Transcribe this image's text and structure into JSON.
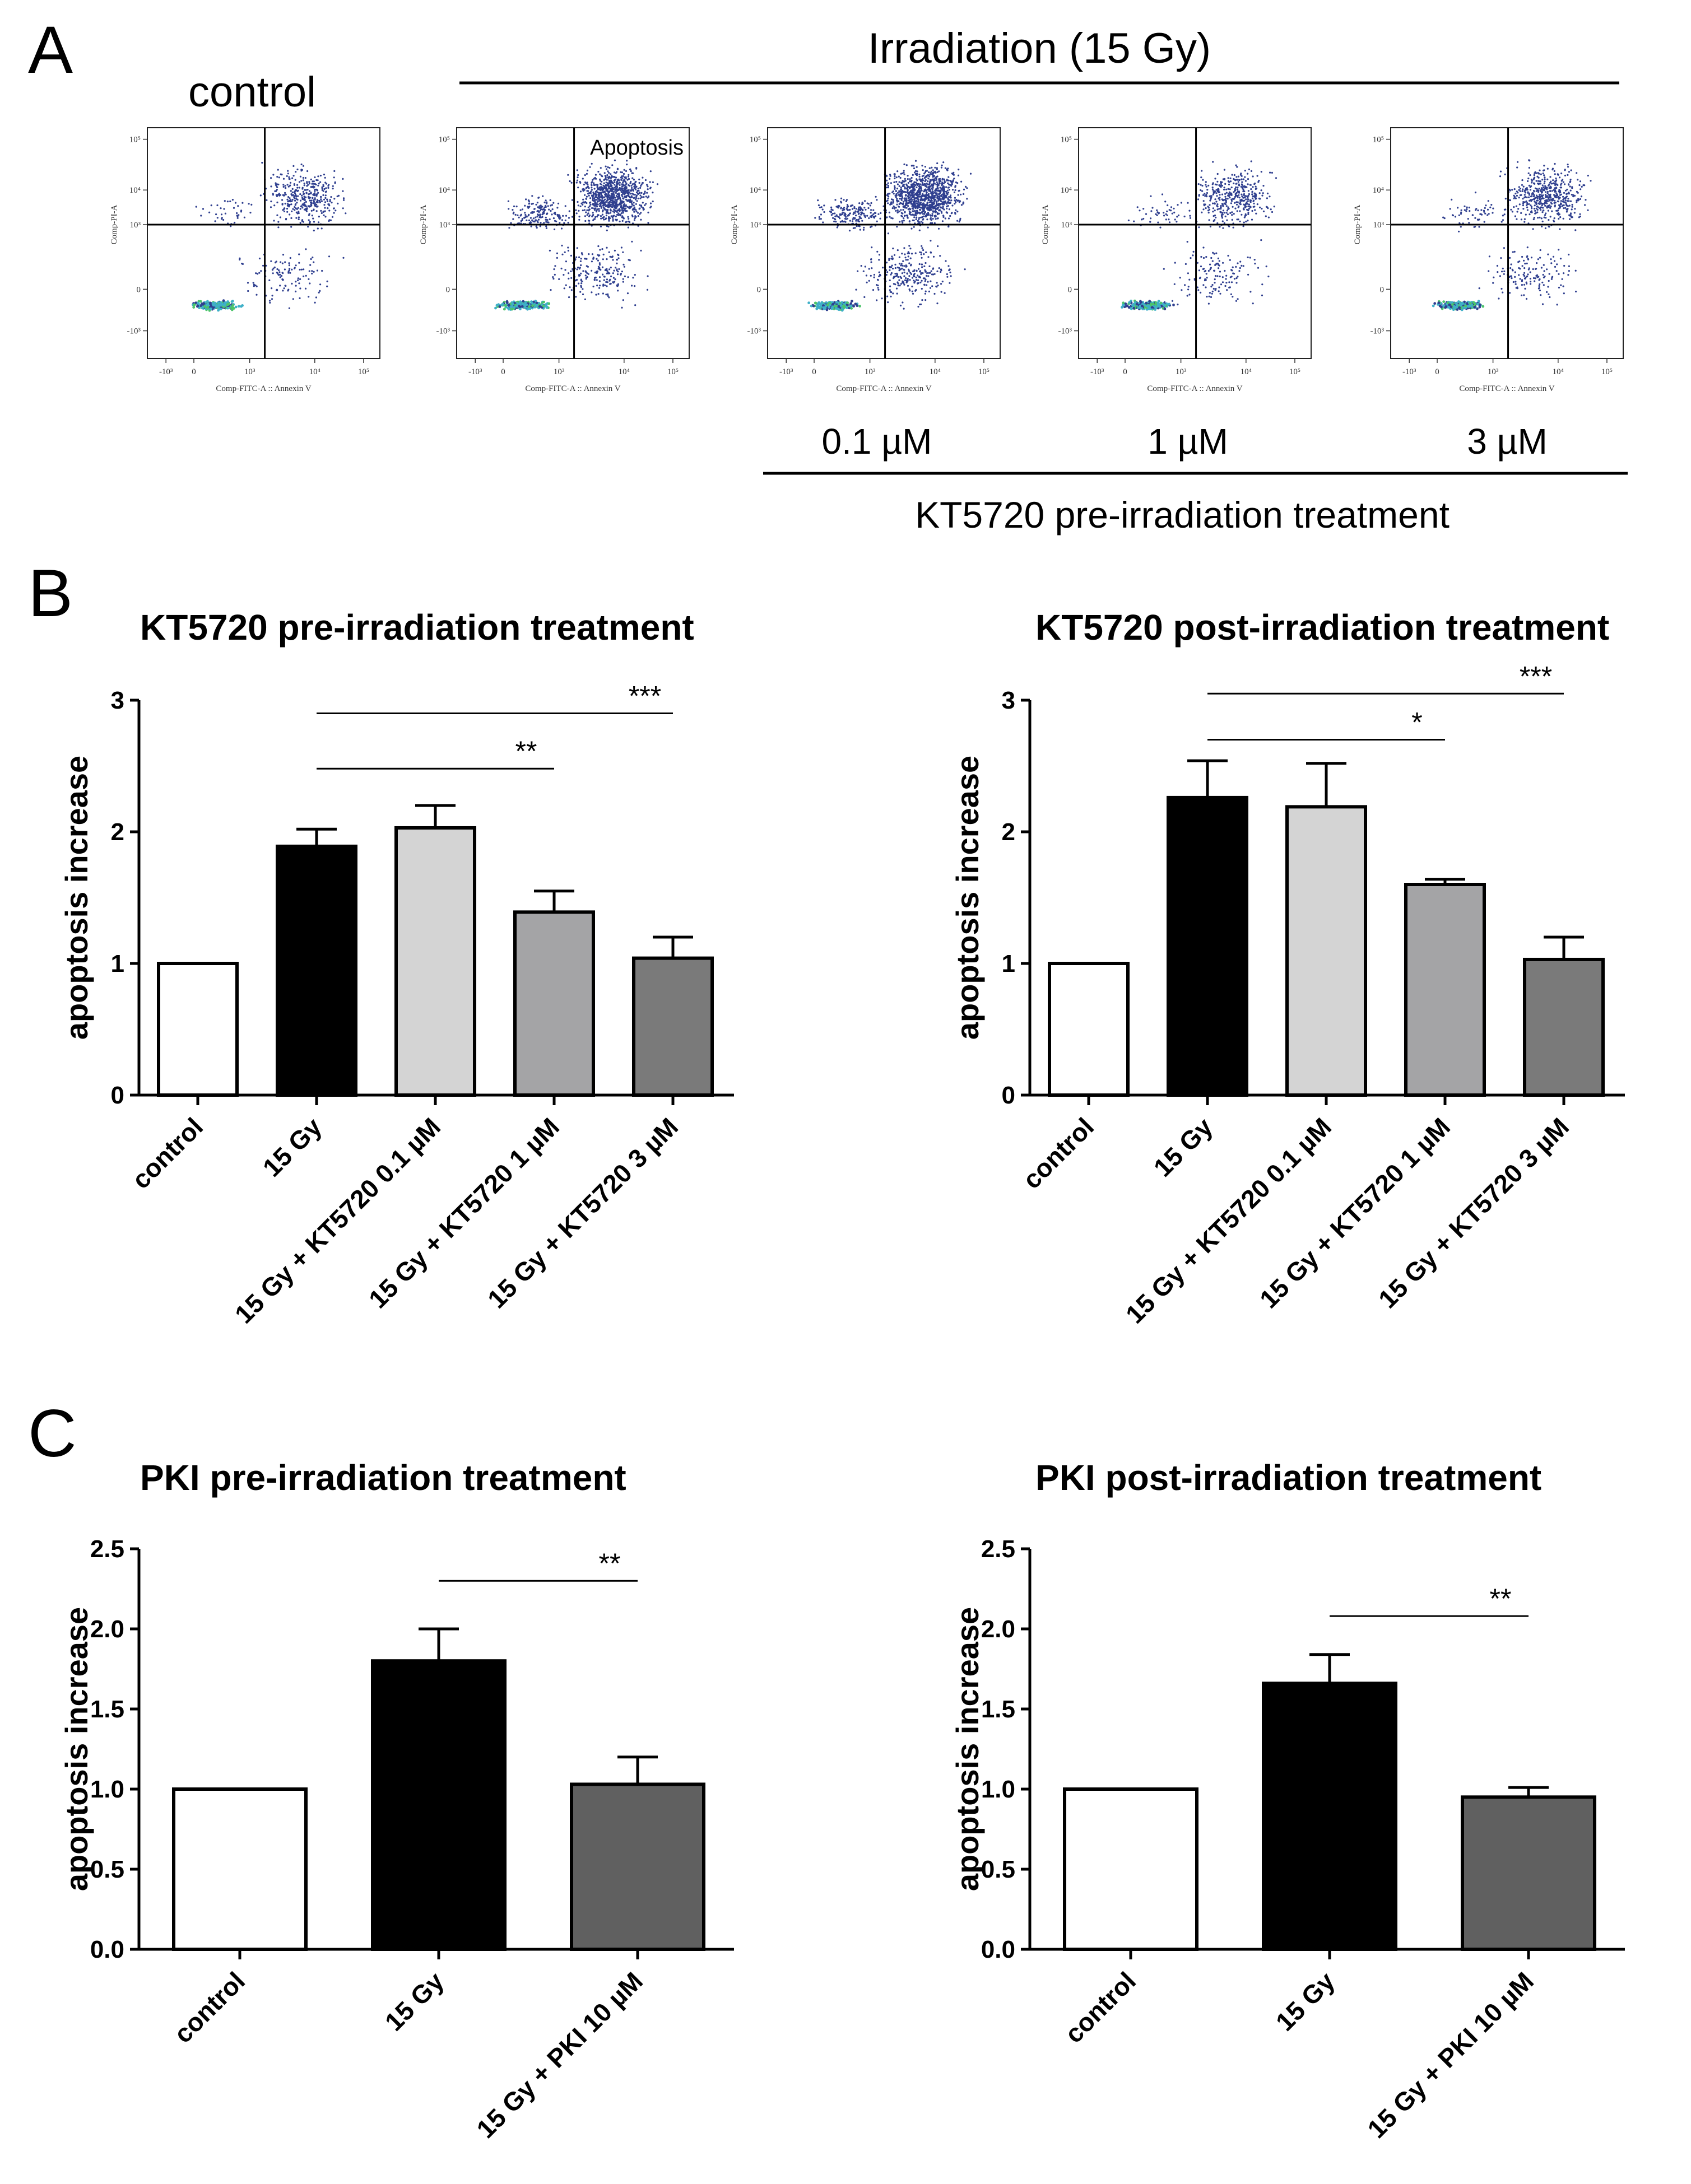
{
  "colors": {
    "white": "#ffffff",
    "black": "#000000",
    "light_grey": "#d4d4d4",
    "mid_grey": "#a4a4a6",
    "dark_grey": "#7a7a7a",
    "pki_grey": "#606060",
    "dot_blue": "#2f3f8f",
    "dot_cyan": "#3fb0c8",
    "dot_green": "#4cc46a"
  },
  "panel_a": {
    "letter": "A",
    "control_label": "control",
    "irradiation_label": "Irradiation (15 Gy)",
    "gate_label": "Apoptosis",
    "treatment_label": "KT5720 pre-irradiation treatment",
    "concentrations": [
      "0.1 µM",
      "1 µM",
      "3 µM"
    ],
    "x_axis_label": "Comp-FITC-A :: Annexin V",
    "y_axis_label": "Comp-PI-A",
    "x_ticks": [
      "-10³",
      "0",
      "10³",
      "10⁴",
      "10⁵"
    ],
    "y_ticks": [
      "10⁵",
      "10⁴",
      "10³",
      "0",
      "-10³"
    ]
  },
  "panel_b_letter": "B",
  "panel_c_letter": "C",
  "chart_data": [
    {
      "type": "bar",
      "title": "KT5720 pre-irradiation treatment",
      "ylabel": "apoptosis increase",
      "ylim": [
        0,
        3
      ],
      "yticks": [
        "0",
        "1",
        "2",
        "3"
      ],
      "categories": [
        "control",
        "15 Gy",
        "15 Gy + KT5720 0.1 µM",
        "15 Gy + KT5720 1 µM",
        "15 Gy + KT5720 3 µM"
      ],
      "values": [
        1.0,
        1.89,
        2.03,
        1.39,
        1.04
      ],
      "errors": [
        0,
        0.13,
        0.17,
        0.16,
        0.16
      ],
      "bar_colors": [
        "#ffffff",
        "#000000",
        "#d4d4d4",
        "#a4a4a6",
        "#7a7a7a"
      ],
      "significance": [
        {
          "from": 1,
          "to": 3,
          "y": 2.48,
          "label": "**"
        },
        {
          "from": 1,
          "to": 4,
          "y": 2.9,
          "label": "***"
        }
      ]
    },
    {
      "type": "bar",
      "title": "KT5720 post-irradiation treatment",
      "ylabel": "apoptosis increase",
      "ylim": [
        0,
        3
      ],
      "yticks": [
        "0",
        "1",
        "2",
        "3"
      ],
      "categories": [
        "control",
        "15 Gy",
        "15 Gy + KT5720 0.1 µM",
        "15 Gy + KT5720 1 µM",
        "15 Gy + KT5720 3 µM"
      ],
      "values": [
        1.0,
        2.26,
        2.19,
        1.6,
        1.03
      ],
      "errors": [
        0,
        0.28,
        0.33,
        0.04,
        0.17
      ],
      "bar_colors": [
        "#ffffff",
        "#000000",
        "#d4d4d4",
        "#a4a4a6",
        "#7a7a7a"
      ],
      "significance": [
        {
          "from": 1,
          "to": 3,
          "y": 2.7,
          "label": "*"
        },
        {
          "from": 1,
          "to": 4,
          "y": 3.05,
          "label": "***"
        }
      ]
    },
    {
      "type": "bar",
      "title": "PKI pre-irradiation treatment",
      "ylabel": "apoptosis increase",
      "ylim": [
        0,
        2.5
      ],
      "yticks": [
        "0.0",
        "0.5",
        "1.0",
        "1.5",
        "2.0",
        "2.5"
      ],
      "categories": [
        "control",
        "15 Gy",
        "15 Gy + PKI 10 µM"
      ],
      "values": [
        1.0,
        1.8,
        1.03
      ],
      "errors": [
        0,
        0.2,
        0.17
      ],
      "bar_colors": [
        "#ffffff",
        "#000000",
        "#606060"
      ],
      "significance": [
        {
          "from": 1,
          "to": 2,
          "y": 2.3,
          "label": "**"
        }
      ]
    },
    {
      "type": "bar",
      "title": "PKI post-irradiation treatment",
      "ylabel": "apoptosis increase",
      "ylim": [
        0,
        2.5
      ],
      "yticks": [
        "0.0",
        "0.5",
        "1.0",
        "1.5",
        "2.0",
        "2.5"
      ],
      "categories": [
        "control",
        "15 Gy",
        "15 Gy + PKI 10 µM"
      ],
      "values": [
        1.0,
        1.66,
        0.95
      ],
      "errors": [
        0,
        0.18,
        0.06
      ],
      "bar_colors": [
        "#ffffff",
        "#000000",
        "#606060"
      ],
      "significance": [
        {
          "from": 1,
          "to": 2,
          "y": 2.08,
          "label": "**"
        }
      ]
    }
  ]
}
